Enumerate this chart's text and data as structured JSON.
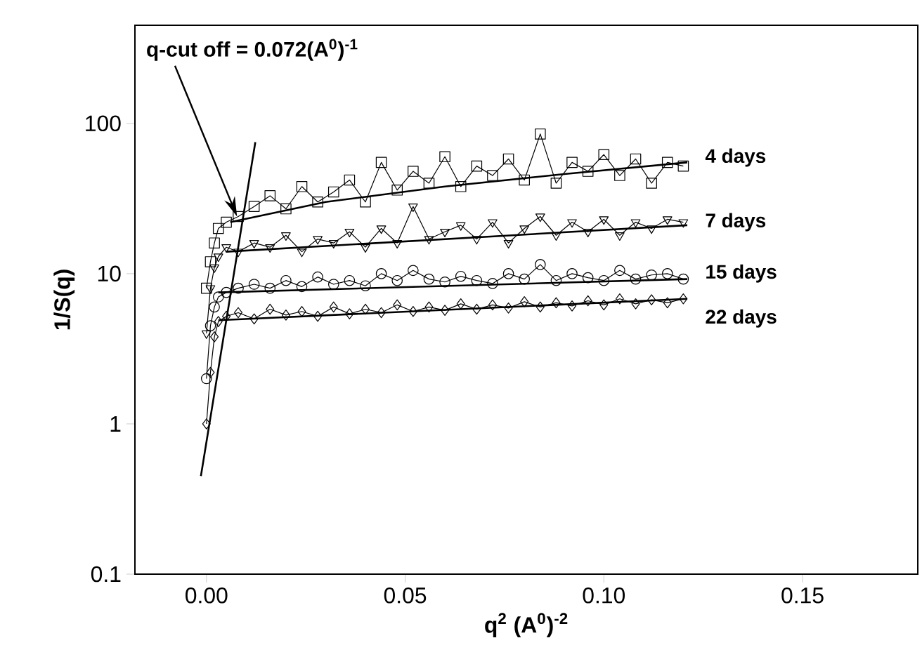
{
  "chart_data": {
    "type": "line",
    "xlabel": "q$^{2}$ (A$^{0}$)$^{-2}$",
    "ylabel": "1/S(q)",
    "log": "y",
    "xlim": [
      -0.018,
      0.179
    ],
    "ylim": [
      0.1,
      450
    ],
    "xticks": [
      {
        "value": 0,
        "label": "0.00"
      },
      {
        "value": 0.05,
        "label": "0.05"
      },
      {
        "value": 0.1,
        "label": "0.10"
      },
      {
        "value": 0.15,
        "label": "0.15"
      }
    ],
    "yticks": [
      0.1,
      1,
      10,
      100
    ],
    "annotations": [
      {
        "text": "q-cut off = 0.072(A$^{0}$)$^{-1}$",
        "x": 0.0077,
        "y": 24
      }
    ],
    "series": [
      {
        "name": "4 days",
        "color": "#000000",
        "marker": "square",
        "x": [
          0.0,
          0.001,
          0.002,
          0.003,
          0.005,
          0.008,
          0.012,
          0.016,
          0.02,
          0.024,
          0.028,
          0.032,
          0.036,
          0.04,
          0.044,
          0.048,
          0.052,
          0.056,
          0.06,
          0.064,
          0.068,
          0.072,
          0.076,
          0.08,
          0.084,
          0.088,
          0.092,
          0.096,
          0.1,
          0.104,
          0.108,
          0.112,
          0.116,
          0.12
        ],
        "values": [
          8,
          12,
          16,
          20,
          22,
          24,
          28,
          33,
          27,
          38,
          30,
          35,
          42,
          30,
          55,
          36,
          48,
          40,
          60,
          38,
          52,
          45,
          58,
          42,
          85,
          40,
          55,
          48,
          62,
          45,
          58,
          40,
          55,
          52
        ]
      },
      {
        "name": "7 days",
        "color": "#000000",
        "marker": "triangle",
        "x": [
          0.0,
          0.001,
          0.002,
          0.003,
          0.005,
          0.008,
          0.012,
          0.016,
          0.02,
          0.024,
          0.028,
          0.032,
          0.036,
          0.04,
          0.044,
          0.048,
          0.052,
          0.056,
          0.06,
          0.064,
          0.068,
          0.072,
          0.076,
          0.08,
          0.084,
          0.088,
          0.092,
          0.096,
          0.1,
          0.104,
          0.108,
          0.112,
          0.116,
          0.12
        ],
        "values": [
          4,
          8,
          11,
          13,
          15,
          14,
          16,
          15,
          18,
          14,
          17,
          16,
          19,
          15,
          20,
          16,
          28,
          17,
          19,
          21,
          17,
          22,
          16,
          20,
          24,
          18,
          22,
          19,
          23,
          18,
          22,
          20,
          23,
          22
        ]
      },
      {
        "name": "15 days",
        "color": "#000000",
        "marker": "circle",
        "x": [
          0.0,
          0.001,
          0.002,
          0.003,
          0.005,
          0.008,
          0.012,
          0.016,
          0.02,
          0.024,
          0.028,
          0.032,
          0.036,
          0.04,
          0.044,
          0.048,
          0.052,
          0.056,
          0.06,
          0.064,
          0.068,
          0.072,
          0.076,
          0.08,
          0.084,
          0.088,
          0.092,
          0.096,
          0.1,
          0.104,
          0.108,
          0.112,
          0.116,
          0.12
        ],
        "values": [
          2,
          4.5,
          6,
          7,
          7.5,
          8,
          8.5,
          8,
          9,
          8.2,
          9.5,
          8.5,
          9,
          8.3,
          10,
          9,
          10.5,
          9.2,
          8.8,
          9.6,
          9,
          8.6,
          10,
          9.2,
          11.5,
          9,
          10,
          9.4,
          9,
          10.5,
          9.2,
          9.8,
          10,
          9.2
        ]
      },
      {
        "name": "22 days",
        "color": "#000000",
        "marker": "diamond",
        "x": [
          0.0,
          0.001,
          0.002,
          0.003,
          0.005,
          0.008,
          0.012,
          0.016,
          0.02,
          0.024,
          0.028,
          0.032,
          0.036,
          0.04,
          0.044,
          0.048,
          0.052,
          0.056,
          0.06,
          0.064,
          0.068,
          0.072,
          0.076,
          0.08,
          0.084,
          0.088,
          0.092,
          0.096,
          0.1,
          0.104,
          0.108,
          0.112,
          0.116,
          0.12
        ],
        "values": [
          1,
          2.2,
          3.8,
          4.8,
          5.2,
          5.5,
          5,
          5.8,
          5.3,
          5.6,
          5.2,
          6,
          5.4,
          5.8,
          5.5,
          6.2,
          5.6,
          6,
          5.7,
          6.3,
          5.8,
          6.2,
          5.9,
          6.5,
          6,
          6.4,
          6.1,
          6.6,
          6.2,
          6.8,
          6.3,
          6.7,
          6.4,
          6.8
        ]
      },
      {
        "color": "#000000",
        "marker": "none",
        "x": [
          0.006,
          0.03,
          0.06,
          0.09,
          0.121
        ],
        "values": [
          22,
          30,
          38,
          46,
          55
        ]
      },
      {
        "color": "#000000",
        "marker": "none",
        "x": [
          0.005,
          0.121
        ],
        "values": [
          14,
          21
        ]
      },
      {
        "color": "#000000",
        "marker": "none",
        "x": [
          0.003,
          0.121
        ],
        "values": [
          7.5,
          9.2
        ]
      },
      {
        "color": "#000000",
        "marker": "none",
        "x": [
          0.003,
          0.121
        ],
        "values": [
          4.9,
          6.8
        ]
      },
      {
        "color": "#000000",
        "marker": "none",
        "x": [
          -0.0014,
          0.0123
        ],
        "values": [
          0.45,
          75
        ]
      }
    ]
  }
}
